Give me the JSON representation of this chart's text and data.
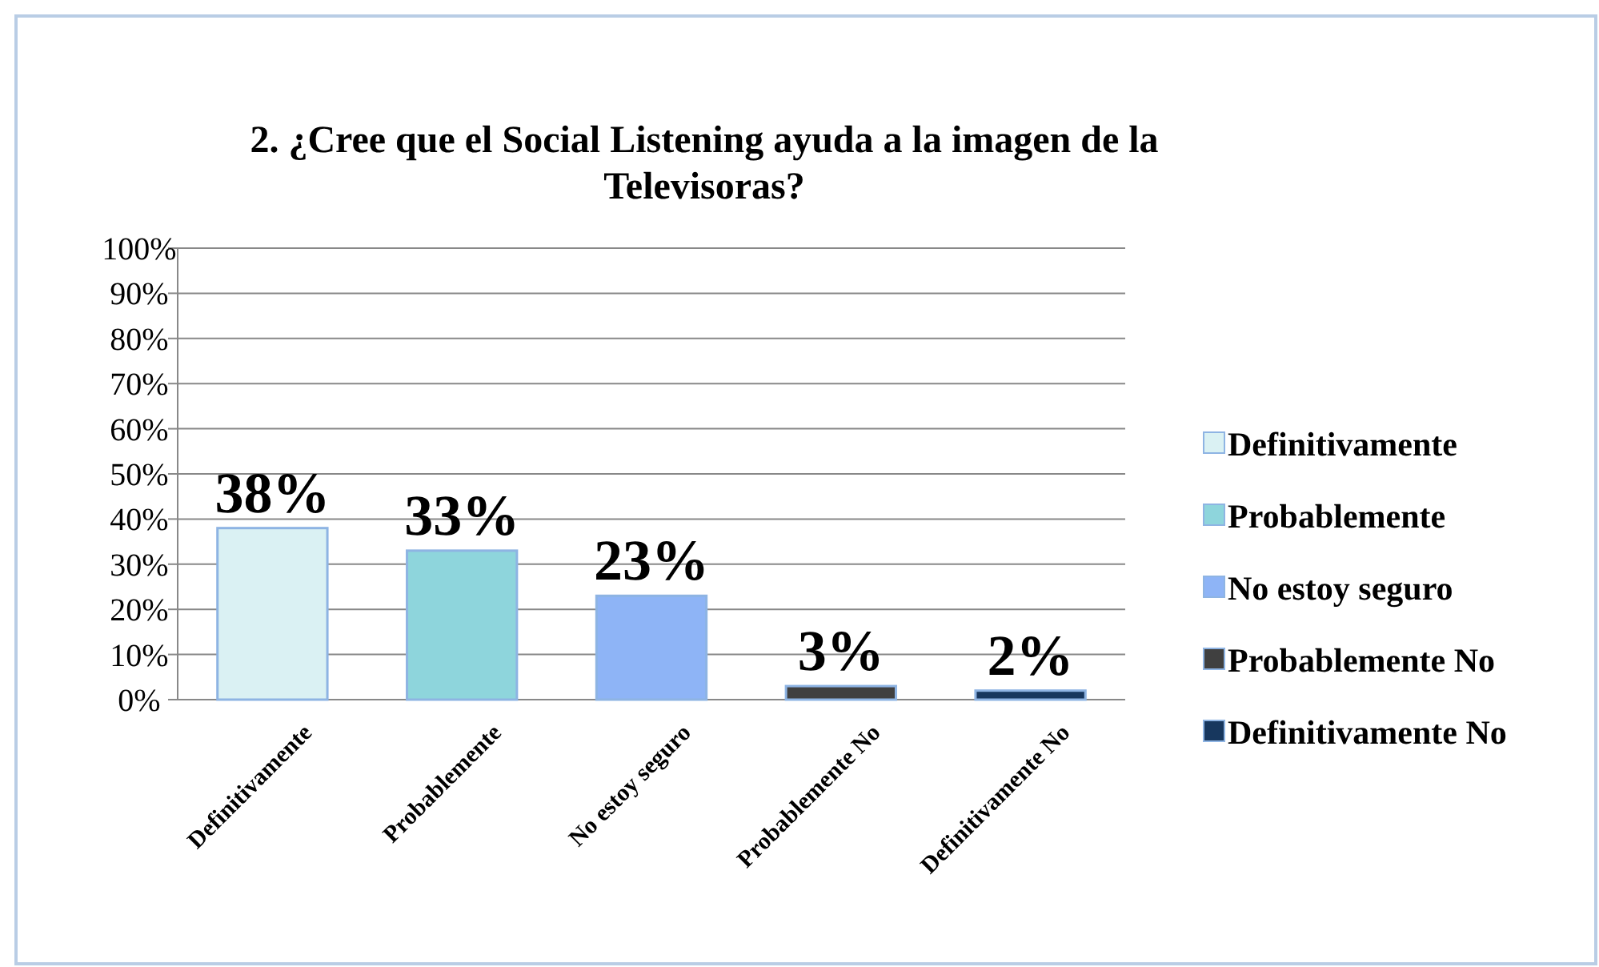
{
  "chart_data": {
    "type": "bar",
    "title": "2. ¿Cree que el Social Listening ayuda a la imagen de la Televisoras?",
    "categories": [
      "Definitivamente",
      "Probablemente",
      "No estoy seguro",
      "Probablemente No",
      "Definitivamente No"
    ],
    "stacked": true,
    "series": [
      {
        "name": "Definitivamente",
        "color": "#daf1f3",
        "values": [
          38,
          null,
          null,
          null,
          null
        ],
        "value_labels": [
          "38%",
          null,
          null,
          null,
          null
        ]
      },
      {
        "name": "Probablemente",
        "color": "#8ed5dc",
        "values": [
          null,
          33,
          null,
          null,
          null
        ],
        "value_labels": [
          null,
          "33%",
          null,
          null,
          null
        ]
      },
      {
        "name": "No estoy seguro",
        "color": "#8eb4f6",
        "values": [
          null,
          null,
          23,
          null,
          null
        ],
        "value_labels": [
          null,
          null,
          "23%",
          null,
          null
        ]
      },
      {
        "name": "Probablemente No",
        "color": "#404040",
        "values": [
          null,
          null,
          null,
          3,
          null
        ],
        "value_labels": [
          null,
          null,
          null,
          "3%",
          null
        ]
      },
      {
        "name": "Definitivamente No",
        "color": "#17375e",
        "values": [
          null,
          null,
          null,
          null,
          2
        ],
        "value_labels": [
          null,
          null,
          null,
          null,
          "2%"
        ]
      }
    ],
    "ylim": [
      0,
      100
    ],
    "yticks": [
      {
        "value": 0,
        "label": "0%"
      },
      {
        "value": 10,
        "label": "10%"
      },
      {
        "value": 20,
        "label": "20%"
      },
      {
        "value": 30,
        "label": "30%"
      },
      {
        "value": 40,
        "label": "40%"
      },
      {
        "value": 50,
        "label": "50%"
      },
      {
        "value": 60,
        "label": "60%"
      },
      {
        "value": 70,
        "label": "70%"
      },
      {
        "value": 80,
        "label": "80%"
      },
      {
        "value": 90,
        "label": "90%"
      },
      {
        "value": 100,
        "label": "100%"
      }
    ],
    "grid": "y",
    "legend": "right"
  }
}
